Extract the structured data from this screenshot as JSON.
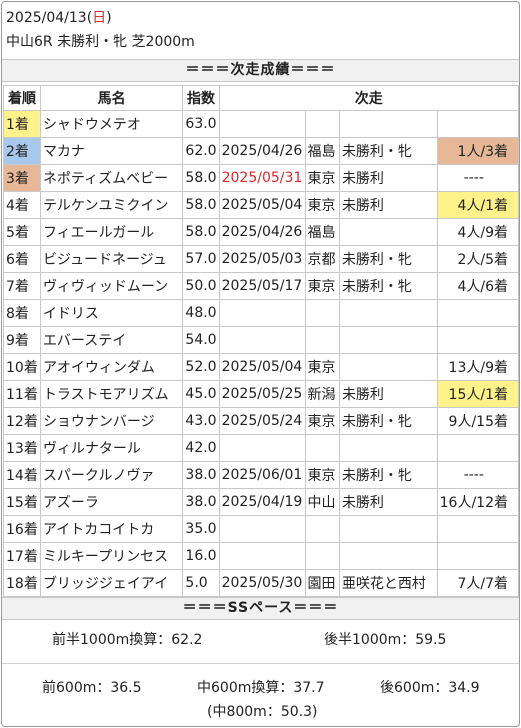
{
  "header": {
    "date": "2025/04/13",
    "weekday_open": "(",
    "weekday": "日",
    "weekday_close": ")",
    "race": "中山6R 未勝利・牝 芝2000m"
  },
  "results_title": "＝＝＝次走成績＝＝＝",
  "columns": {
    "rank": "着順",
    "horse": "馬名",
    "index": "指数",
    "next": "次走"
  },
  "rows": [
    {
      "rank": "1着",
      "horse": "シャドウメテオ",
      "index": "63.0",
      "date": "",
      "venue": "",
      "race": "",
      "pop": ""
    },
    {
      "rank": "2着",
      "horse": "マカナ",
      "index": "62.0",
      "date": "2025/04/26",
      "venue": "福島",
      "race": "未勝利・牝",
      "pop": "1人/3着"
    },
    {
      "rank": "3着",
      "horse": "ネポティズムベビー",
      "index": "58.0",
      "date": "2025/05/31",
      "venue": "東京",
      "race": "未勝利",
      "pop": "----"
    },
    {
      "rank": "4着",
      "horse": "テルケンユミクイン",
      "index": "58.0",
      "date": "2025/05/04",
      "venue": "東京",
      "race": "未勝利",
      "pop": "4人/1着"
    },
    {
      "rank": "5着",
      "horse": "フィエールガール",
      "index": "58.0",
      "date": "2025/04/26",
      "venue": "福島",
      "race": "",
      "pop": "4人/9着"
    },
    {
      "rank": "6着",
      "horse": "ビジュードネージュ",
      "index": "57.0",
      "date": "2025/05/03",
      "venue": "京都",
      "race": "未勝利・牝",
      "pop": "2人/5着"
    },
    {
      "rank": "7着",
      "horse": "ヴィヴィッドムーン",
      "index": "50.0",
      "date": "2025/05/17",
      "venue": "東京",
      "race": "未勝利・牝",
      "pop": "4人/6着"
    },
    {
      "rank": "8着",
      "horse": "イドリス",
      "index": "48.0",
      "date": "",
      "venue": "",
      "race": "",
      "pop": ""
    },
    {
      "rank": "9着",
      "horse": "エバーステイ",
      "index": "54.0",
      "date": "",
      "venue": "",
      "race": "",
      "pop": ""
    },
    {
      "rank": "10着",
      "horse": "アオイウィンダム",
      "index": "52.0",
      "date": "2025/05/04",
      "venue": "東京",
      "race": "",
      "pop": "13人/9着"
    },
    {
      "rank": "11着",
      "horse": "トラストモアリズム",
      "index": "45.0",
      "date": "2025/05/25",
      "venue": "新潟",
      "race": "未勝利",
      "pop": "15人/1着"
    },
    {
      "rank": "12着",
      "horse": "ショウナンバージ",
      "index": "43.0",
      "date": "2025/05/24",
      "venue": "東京",
      "race": "未勝利・牝",
      "pop": "9人/15着"
    },
    {
      "rank": "13着",
      "horse": "ヴィルナタール",
      "index": "42.0",
      "date": "",
      "venue": "",
      "race": "",
      "pop": ""
    },
    {
      "rank": "14着",
      "horse": "スパークルノヴァ",
      "index": "38.0",
      "date": "2025/06/01",
      "venue": "東京",
      "race": "未勝利・牝",
      "pop": "----"
    },
    {
      "rank": "15着",
      "horse": "アズーラ",
      "index": "38.0",
      "date": "2025/04/19",
      "venue": "中山",
      "race": "未勝利",
      "pop": "16人/12着"
    },
    {
      "rank": "16着",
      "horse": "アイトカコイトカ",
      "index": "35.0",
      "date": "",
      "venue": "",
      "race": "",
      "pop": ""
    },
    {
      "rank": "17着",
      "horse": "ミルキープリンセス",
      "index": "16.0",
      "date": "",
      "venue": "",
      "race": "",
      "pop": ""
    },
    {
      "rank": "18着",
      "horse": "ブリッジジェイアイ",
      "index": "5.0",
      "date": "2025/05/30",
      "venue": "園田",
      "race": "亜咲花と西村",
      "pop": "7人/7着"
    }
  ],
  "colors": {
    "gold": "#fff28a",
    "blue": "#a8c8ec",
    "bronze": "#e6b898",
    "red": "#d92b2b"
  },
  "pace_title": "＝＝＝SSペース＝＝＝",
  "pace": {
    "first_half": "前半1000m換算：62.2",
    "second_half": "後半1000m：59.5",
    "first600": "前600m：36.5",
    "mid600": "中600m換算：37.7",
    "last600": "後600m：34.9",
    "mid800": "(中800m：50.3)"
  }
}
